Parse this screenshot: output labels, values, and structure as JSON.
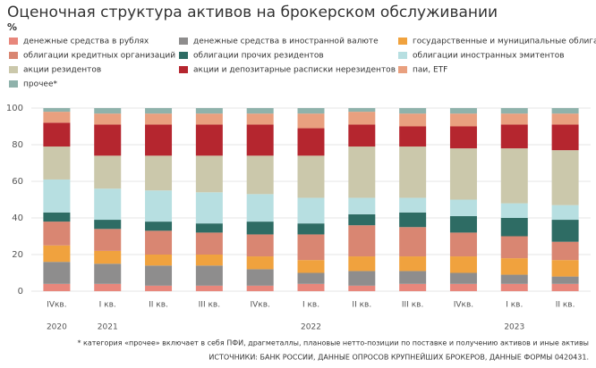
{
  "chart_data": {
    "type": "stacked_bar",
    "title": "Оценочная структура активов на брокерском обслуживании",
    "y_label": "%",
    "categories": [
      "IVкв.",
      "I кв.",
      "II кв.",
      "III кв.",
      "IVкв.",
      "I кв.",
      "II кв.",
      "III кв.",
      "IVкв.",
      "I кв.",
      "II кв."
    ],
    "years": [
      "2020",
      "2021",
      null,
      null,
      null,
      "2022",
      null,
      null,
      null,
      "2023",
      null
    ],
    "ylim": [
      0,
      100
    ],
    "yticks": [
      0,
      20,
      40,
      60,
      80,
      100
    ],
    "grid": true,
    "series": [
      {
        "name": "денежные средства в рублях",
        "color": "#e8877c",
        "values": [
          4,
          4,
          3,
          3,
          3,
          4,
          3,
          4,
          4,
          4,
          4
        ]
      },
      {
        "name": "денежные средства в иностранной валюте",
        "color": "#8e8d8d",
        "values": [
          12,
          11,
          11,
          11,
          9,
          6,
          8,
          7,
          6,
          5,
          4
        ]
      },
      {
        "name": "государственные и муниципальные облигации",
        "color": "#f0a23e",
        "values": [
          9,
          7,
          6,
          6,
          7,
          7,
          8,
          8,
          9,
          9,
          9
        ]
      },
      {
        "name": "облигации кредитных организаций",
        "color": "#d98672",
        "values": [
          13,
          12,
          13,
          12,
          12,
          14,
          17,
          16,
          13,
          12,
          10
        ]
      },
      {
        "name": "облигации прочих резидентов",
        "color": "#2e6c64",
        "values": [
          5,
          5,
          5,
          5,
          7,
          6,
          6,
          8,
          9,
          10,
          12
        ]
      },
      {
        "name": "облигации иностранных эмитентов",
        "color": "#b7dfe1",
        "values": [
          18,
          17,
          17,
          17,
          15,
          14,
          9,
          8,
          9,
          8,
          8
        ]
      },
      {
        "name": "акции резидентов",
        "color": "#cbc8ab",
        "values": [
          18,
          18,
          19,
          20,
          21,
          23,
          28,
          28,
          28,
          30,
          30
        ]
      },
      {
        "name": "акции и депозитарные расписки нерезидентов",
        "color": "#b5262f",
        "values": [
          13,
          17,
          17,
          17,
          17,
          15,
          12,
          11,
          12,
          13,
          14
        ]
      },
      {
        "name": "паи, ETF",
        "color": "#e9a07f",
        "values": [
          6,
          6,
          6,
          6,
          6,
          8,
          7,
          7,
          7,
          6,
          6
        ]
      },
      {
        "name": "прочее*",
        "color": "#8fb2ab",
        "values": [
          2,
          3,
          3,
          3,
          3,
          3,
          2,
          3,
          3,
          3,
          3
        ]
      }
    ],
    "footnote": "* категория «прочее» включает в себя ПФИ, драгметаллы, плановые нетто-позиции по поставке и получению активов и иные активы",
    "source": "ИСТОЧНИКИ: БАНК РОССИИ, ДАННЫЕ ОПРОСОВ КРУПНЕЙШИХ БРОКЕРОВ, ДАННЫЕ ФОРМЫ 0420431."
  }
}
